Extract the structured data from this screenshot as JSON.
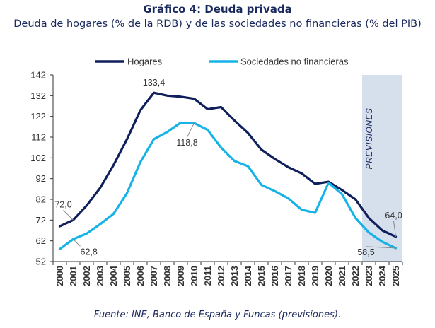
{
  "header": {
    "title": "Gráfico 4: Deuda privada",
    "subtitle": "Deuda de hogares (% de la RDB) y de las sociedades no financieras (% del PIB)"
  },
  "footer": {
    "source": "Fuente: INE, Banco de España y Funcas (previsiones)."
  },
  "colors": {
    "hogares": "#0f1f5c",
    "sociedades": "#17b3e6",
    "forecast_band": "#d6dfec",
    "axis": "#333333",
    "annotation": "#333333"
  },
  "chart_data": {
    "type": "line",
    "title": "Gráfico 4: Deuda privada",
    "subtitle": "Deuda de hogares (% de la RDB) y de las sociedades no financieras (% del PIB)",
    "x": [
      "2000",
      "2001",
      "2002",
      "2003",
      "2004",
      "2005",
      "2006",
      "2007",
      "2008",
      "2009",
      "2010",
      "2011",
      "2012",
      "2013",
      "2014",
      "2015",
      "2016",
      "2017",
      "2018",
      "2019",
      "2020",
      "2021",
      "2022",
      "2023",
      "2024",
      "2025"
    ],
    "ylim": [
      52,
      142
    ],
    "yticks": [
      52,
      62,
      72,
      82,
      92,
      102,
      112,
      122,
      132,
      142
    ],
    "grid": false,
    "legend_position": "top",
    "series": [
      {
        "name": "Hogares",
        "color": "#0f1f5c",
        "values": [
          69.0,
          72.0,
          79.0,
          87.5,
          98.5,
          111.0,
          125.0,
          133.4,
          132.0,
          131.5,
          130.5,
          125.5,
          126.5,
          120.0,
          114.0,
          106.0,
          101.5,
          97.5,
          94.5,
          89.5,
          90.5,
          86.5,
          82.0,
          73.0,
          67.0,
          64.0
        ]
      },
      {
        "name": "Sociedades no financieras",
        "color": "#17b3e6",
        "values": [
          58.0,
          62.8,
          65.5,
          70.0,
          75.0,
          85.0,
          100.0,
          111.0,
          114.5,
          119.0,
          118.8,
          115.5,
          107.0,
          100.5,
          98.0,
          89.0,
          86.0,
          82.5,
          77.0,
          75.5,
          90.0,
          84.5,
          73.0,
          66.0,
          61.5,
          58.5
        ]
      }
    ],
    "forecast": {
      "label": "PREVISIONES",
      "from": "2023",
      "to": "2025"
    },
    "annotations": [
      {
        "series": 0,
        "x": "2001",
        "text": "72,0"
      },
      {
        "series": 0,
        "x": "2007",
        "text": "133,4"
      },
      {
        "series": 0,
        "x": "2025",
        "text": "64,0"
      },
      {
        "series": 1,
        "x": "2001",
        "text": "62,8"
      },
      {
        "series": 1,
        "x": "2010",
        "text": "118,8"
      },
      {
        "series": 1,
        "x": "2025",
        "text": "58,5"
      }
    ]
  }
}
